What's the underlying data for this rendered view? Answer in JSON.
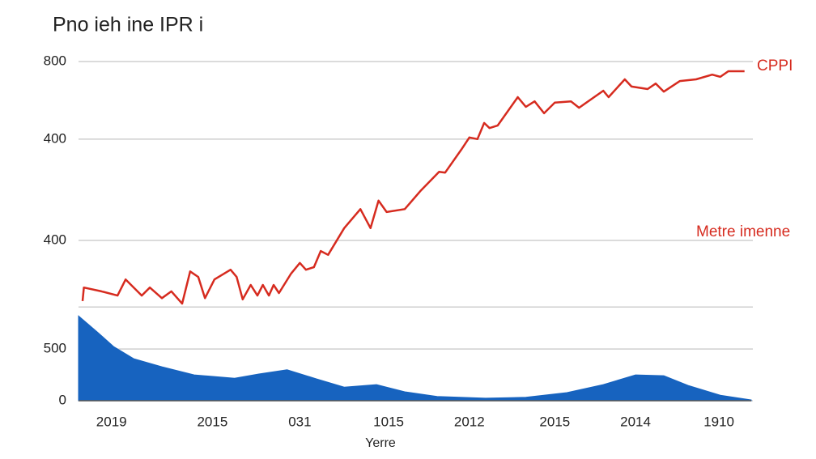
{
  "chart_data": {
    "type": "line",
    "title": "Pno ieh ine IPR i",
    "xlabel": "Yerre",
    "annotations": [
      "CPPI",
      "Metre imenne"
    ],
    "xlim": [
      0,
      100
    ],
    "xticks": [
      {
        "value": 4.9,
        "label": "2019"
      },
      {
        "value": 19.9,
        "label": "2015"
      },
      {
        "value": 32.9,
        "label": "031"
      },
      {
        "value": 46.1,
        "label": "1015"
      },
      {
        "value": 58.1,
        "label": "2012"
      },
      {
        "value": 70.8,
        "label": "2015"
      },
      {
        "value": 82.8,
        "label": "2014"
      },
      {
        "value": 95.2,
        "label": "1910"
      }
    ],
    "ylim": [
      0,
      800
    ],
    "yticks": [
      0,
      {
        "value": 122,
        "label": "500"
      },
      {
        "value": 378,
        "label": "400"
      },
      {
        "value": 617,
        "label": "400"
      },
      800
    ],
    "ygrid": [
      221
    ],
    "grid": true,
    "series": [
      {
        "color": "#d62b1f",
        "style": "line",
        "x": [
          0.6,
          0.8,
          3.4,
          5.8,
          7.0,
          9.4,
          10.6,
          12.4,
          13.8,
          15.4,
          16.6,
          17.8,
          18.8,
          20.2,
          22.6,
          23.5,
          24.4,
          25.6,
          26.6,
          27.4,
          28.3,
          29.0,
          29.8,
          31.6,
          32.9,
          33.8,
          35.0,
          36.0,
          37.1,
          39.5,
          41.9,
          43.4,
          44.6,
          45.8,
          48.5,
          50.9,
          53.6,
          54.5,
          56.9,
          58.1,
          59.3,
          60.3,
          61.1,
          62.3,
          65.3,
          66.5,
          67.8,
          69.2,
          70.8,
          73.2,
          74.4,
          78.0,
          78.8,
          81.2,
          82.2,
          84.6,
          85.8,
          87.0,
          89.4,
          91.8,
          94.2,
          95.4,
          96.6,
          99.0
        ],
        "values": [
          235,
          267,
          258,
          248,
          286,
          248,
          267,
          242,
          258,
          229,
          305,
          292,
          242,
          286,
          309,
          292,
          239,
          273,
          248,
          273,
          248,
          273,
          254,
          300,
          325,
          309,
          315,
          353,
          344,
          407,
          452,
          407,
          472,
          445,
          452,
          496,
          540,
          538,
          592,
          621,
          617,
          655,
          643,
          649,
          716,
          693,
          706,
          678,
          703,
          706,
          691,
          731,
          716,
          758,
          741,
          735,
          748,
          729,
          754,
          758,
          769,
          764,
          777,
          777
        ]
      },
      {
        "color": "#1763bf",
        "style": "area",
        "x": [
          0,
          2.8,
          5.2,
          8.2,
          12.4,
          17.2,
          23.2,
          26.8,
          31.0,
          35.3,
          39.5,
          44.3,
          48.5,
          53.3,
          60.5,
          66.5,
          72.6,
          78.0,
          82.8,
          87.0,
          90.6,
          95.4,
          100
        ],
        "values": [
          200,
          162,
          128,
          99,
          80,
          61,
          53,
          63,
          73,
          52,
          32,
          38,
          21,
          10,
          6,
          8,
          19,
          38,
          61,
          59,
          36,
          13,
          2
        ]
      }
    ]
  }
}
